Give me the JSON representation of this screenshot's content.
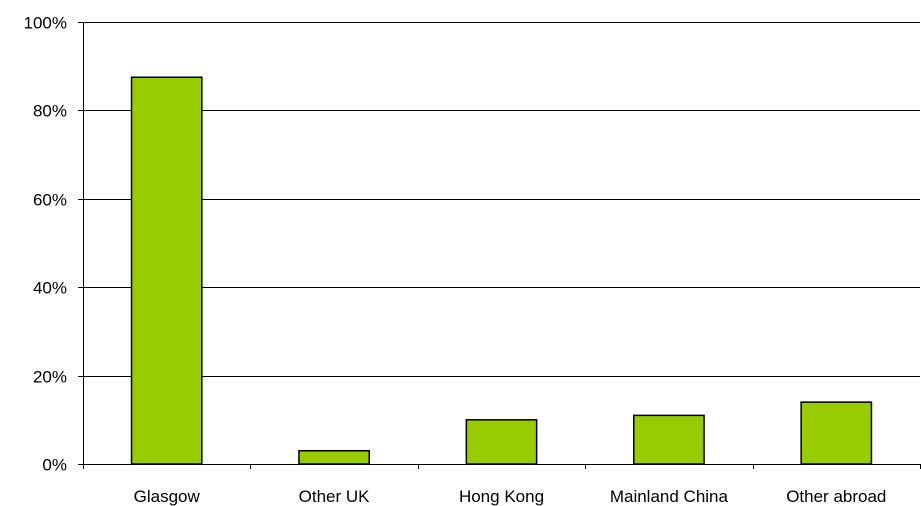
{
  "chart_data": {
    "type": "bar",
    "categories": [
      "Glasgow",
      "Other UK",
      "Hong Kong",
      "Mainland China",
      "Other abroad"
    ],
    "values": [
      87.5,
      3,
      10,
      11,
      14
    ],
    "ylim": [
      0,
      100
    ],
    "y_ticks": [
      0,
      20,
      40,
      60,
      80,
      100
    ],
    "y_tick_labels": [
      "0%",
      "20%",
      "40%",
      "60%",
      "80%",
      "100%"
    ],
    "title": "",
    "xlabel": "",
    "ylabel": "",
    "grid": true,
    "bar_color": "#99cc00",
    "legend": "none"
  }
}
